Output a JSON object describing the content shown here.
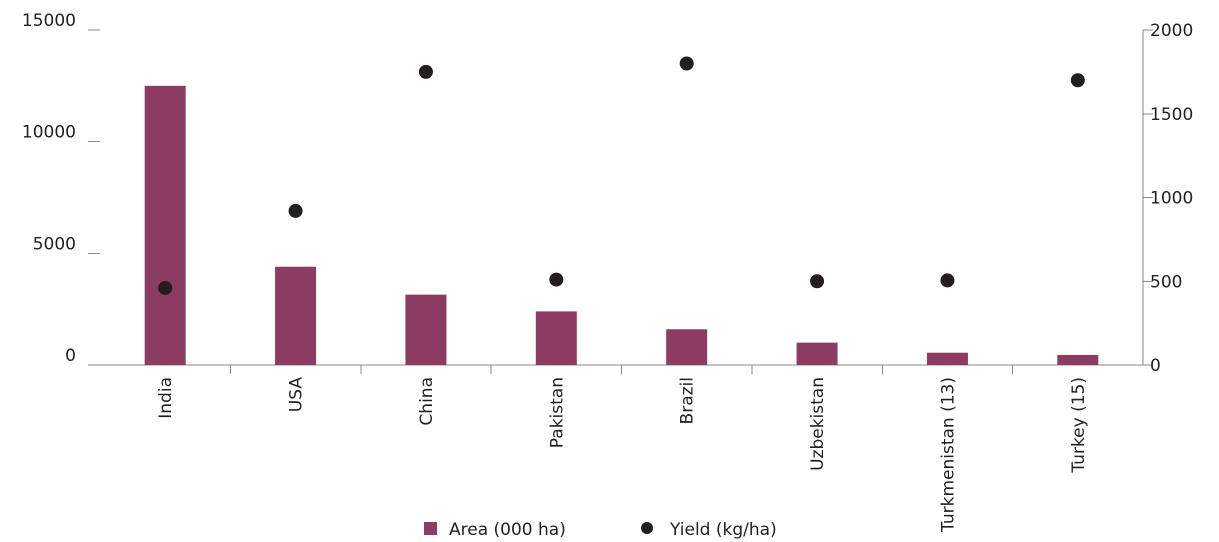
{
  "chart_data": {
    "type": "bar",
    "categories": [
      "India",
      "USA",
      "China",
      "Pakistan",
      "Brazil",
      "Uzbekistan",
      "Turkmenistan (13)",
      "Turkey (15)"
    ],
    "series": [
      {
        "name": "Area (000 ha)",
        "type": "bar",
        "axis": "left",
        "color": "#8c3b62",
        "values": [
          12500,
          4400,
          3150,
          2400,
          1600,
          1000,
          550,
          450
        ]
      },
      {
        "name": "Yield (kg/ha)",
        "type": "scatter",
        "axis": "right",
        "color": "#231f20",
        "values": [
          460,
          920,
          1750,
          510,
          1800,
          500,
          505,
          1700
        ]
      }
    ],
    "left_axis": {
      "ylim": [
        0,
        15000
      ],
      "ticks": [
        "0",
        "5000",
        "10000",
        "15000"
      ]
    },
    "right_axis": {
      "ylim": [
        0,
        2000
      ],
      "ticks": [
        "0",
        "500",
        "1000",
        "1500",
        "2000"
      ]
    },
    "grid": false,
    "legend": "bottom-center",
    "title": "",
    "xlabel": "",
    "ylabel": ""
  }
}
